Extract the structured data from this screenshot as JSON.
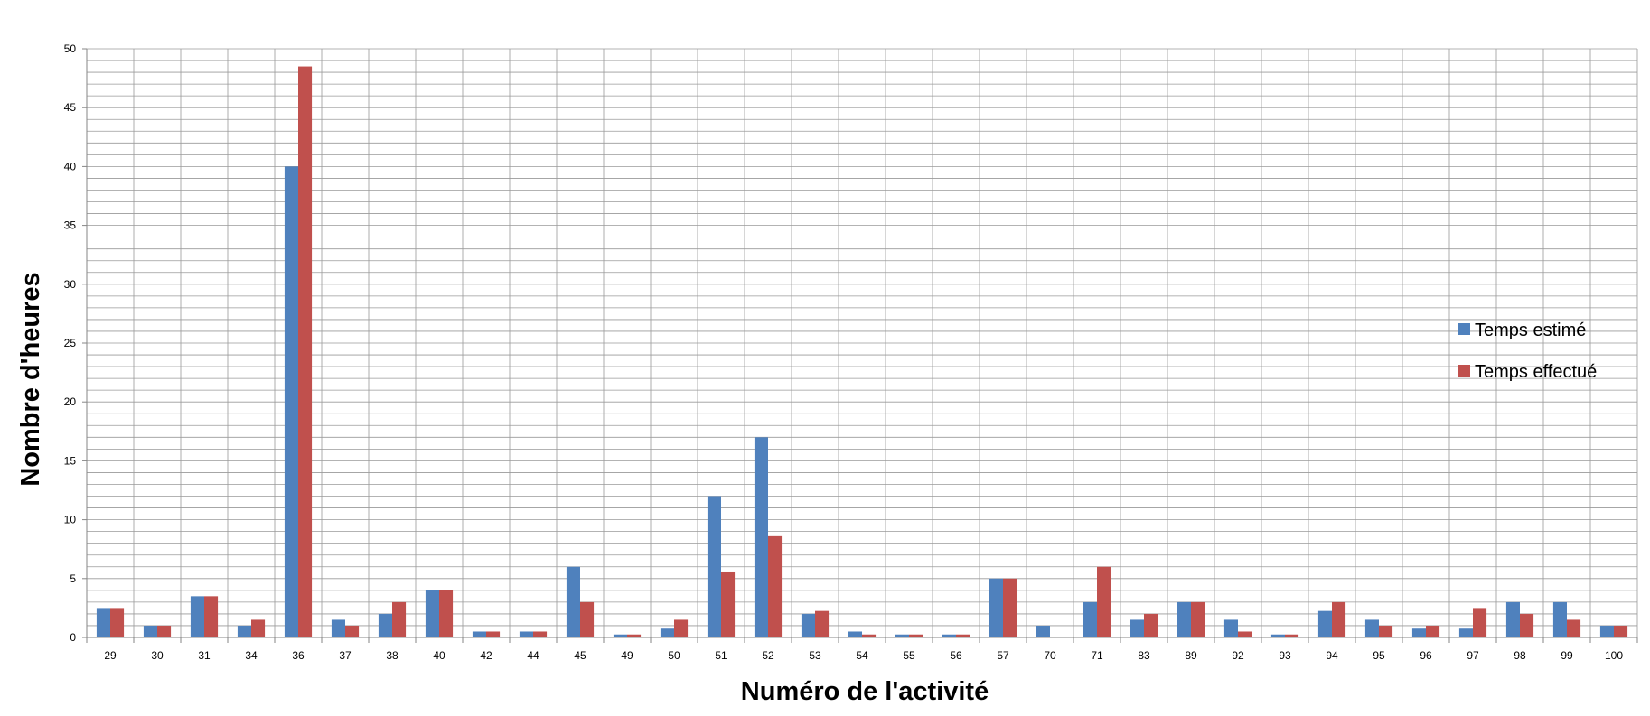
{
  "chart_data": {
    "type": "bar",
    "title": "",
    "xlabel": "Numéro de l'activité",
    "ylabel": "Nombre d'heures",
    "ylim": [
      0,
      50
    ],
    "yticks": [
      0,
      5,
      10,
      15,
      20,
      25,
      30,
      35,
      40,
      45,
      50
    ],
    "grid": true,
    "legend_position": "right",
    "categories": [
      "29",
      "30",
      "31",
      "34",
      "36",
      "37",
      "38",
      "40",
      "42",
      "44",
      "45",
      "49",
      "50",
      "51",
      "52",
      "53",
      "54",
      "55",
      "56",
      "57",
      "70",
      "71",
      "83",
      "89",
      "92",
      "93",
      "94",
      "95",
      "96",
      "97",
      "98",
      "99",
      "100"
    ],
    "series": [
      {
        "name": "Temps estimé",
        "color": "#4F81BD",
        "values": [
          2.5,
          1,
          3.5,
          1,
          40,
          1.5,
          2,
          4,
          0.5,
          0.5,
          6,
          0.25,
          0.75,
          12,
          17,
          2,
          0.5,
          0.25,
          0.25,
          5,
          1,
          3,
          1.5,
          3,
          1.5,
          0.25,
          2.25,
          1.5,
          0.75,
          0.75,
          3,
          3,
          1
        ]
      },
      {
        "name": "Temps effectué",
        "color": "#C0504D",
        "values": [
          2.5,
          1,
          3.5,
          1.5,
          48.5,
          1,
          3,
          4,
          0.5,
          0.5,
          3,
          0.25,
          1.5,
          5.6,
          8.6,
          2.25,
          0.25,
          0.25,
          0.25,
          5,
          0,
          6,
          2,
          3,
          0.5,
          0.25,
          3,
          1,
          1,
          2.5,
          2,
          1.5,
          1
        ]
      }
    ]
  }
}
